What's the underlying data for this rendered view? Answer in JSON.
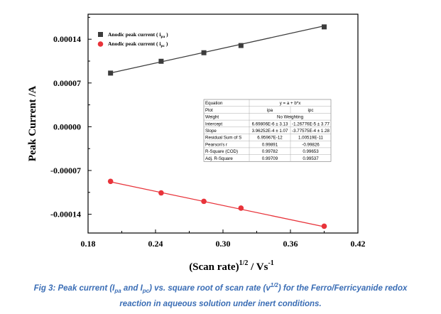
{
  "chart_data": {
    "type": "scatter",
    "xlabel_main": "(Scan rate)",
    "xlabel_exp": "1/2",
    "xlabel_unit": " / Vs",
    "xlabel_unit_exp": "-1",
    "ylabel": "Peak Current /A",
    "xlim": [
      0.18,
      0.42
    ],
    "ylim": [
      -0.00017,
      0.00018
    ],
    "x_ticks": [
      0.18,
      0.24,
      0.3,
      0.36,
      0.42
    ],
    "x_tick_labels": [
      "0.18",
      "0.24",
      "0.30",
      "0.36",
      "0.42"
    ],
    "y_ticks": [
      0.00014,
      7e-05,
      0.0,
      -7e-05,
      -0.00014
    ],
    "y_tick_labels": [
      "0.00014",
      "0.00007",
      "0.00000",
      "-0.00007",
      "-0.00014"
    ],
    "grid": false,
    "legend_position": "top-left",
    "series": [
      {
        "name_prefix": "Anodic peak current ( i",
        "name_sub": "pa",
        "name_suffix": " )",
        "color": "#3c3c3c",
        "marker": "square",
        "x": [
          0.2,
          0.245,
          0.283,
          0.316,
          0.39
        ],
        "y": [
          8.58e-05,
          0.0001047,
          0.0001184,
          0.0001299,
          0.0001597
        ],
        "fit_slope": 0.000396252,
        "fit_intercept": 6.69806e-06
      },
      {
        "name_prefix": "Anodic peak current ( i",
        "name_sub": "pc",
        "name_suffix": " )",
        "color": "#e8333a",
        "marker": "circle",
        "x": [
          0.2,
          0.245,
          0.283,
          0.316,
          0.39
        ],
        "y": [
          -8.74e-05,
          -0.0001058,
          -0.0001193,
          -0.0001302,
          -0.0001591
        ],
        "fit_slope": -0.000377575,
        "fit_intercept": -1.26776e-05
      }
    ],
    "fit_table": {
      "rows": [
        [
          "Equation",
          "y = a + b*x",
          ""
        ],
        [
          "Plot",
          "ipa",
          "ipc"
        ],
        [
          "Weight",
          "No Weighting",
          ""
        ],
        [
          "Intercept",
          "6.69806E-6 ± 3.13",
          "-1.26776E-5 ± 3.77"
        ],
        [
          "Slope",
          "3.96252E-4 ± 1.07",
          "-3.77575E-4 ± 1.28"
        ],
        [
          "Residual Sum of S",
          "6.95967E-12",
          "1.00519E-11"
        ],
        [
          "Pearson's r",
          "0.99891",
          "-0.99826"
        ],
        [
          "R-Square (COD)",
          "0.99782",
          "0.99653"
        ],
        [
          "Adj. R-Square",
          "0.99709",
          "0.99537"
        ]
      ]
    }
  },
  "caption": {
    "line1_a": "Fig 3: Peak current (I",
    "line1_sub1": "pa",
    "line1_b": " and I",
    "line1_sub2": "pc",
    "line1_c": ") vs. square root of scan rate (v",
    "line1_sup": "1/2",
    "line1_d": ") for the Ferro/Ferricyanide redox",
    "line2": "reaction in aqueous solution under inert conditions."
  }
}
